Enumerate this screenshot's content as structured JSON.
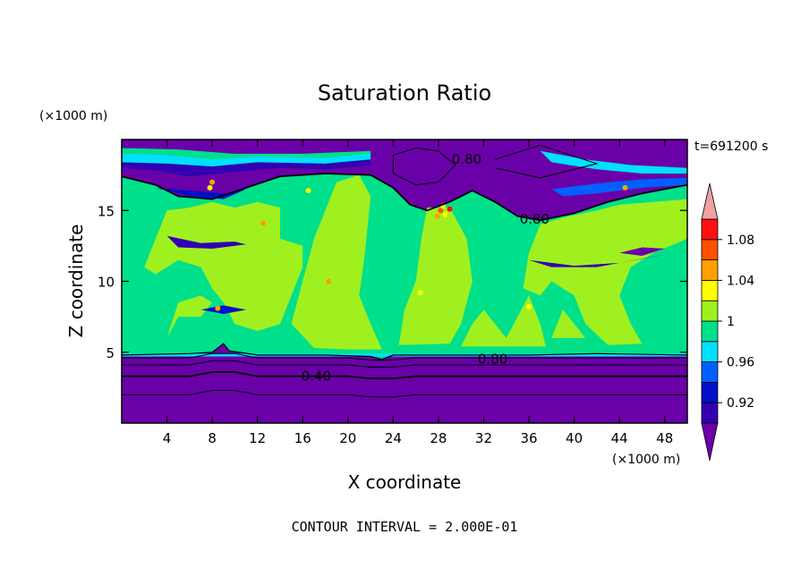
{
  "chart_data": {
    "type": "heatmap",
    "title": "Saturation Ratio",
    "xlabel": "X coordinate",
    "ylabel": "Z coordinate",
    "x_unit_label": "(×1000 m)",
    "y_unit_label": "(×1000 m)",
    "time_label": "t=691200 s",
    "footer": "CONTOUR INTERVAL = 2.000E-01",
    "xlim": [
      0,
      50
    ],
    "ylim": [
      0,
      20
    ],
    "x_ticks": [
      4,
      8,
      12,
      16,
      20,
      24,
      28,
      32,
      36,
      40,
      44,
      48
    ],
    "y_ticks": [
      5,
      10,
      15
    ],
    "colorbar": {
      "levels": [
        0.92,
        0.94,
        0.96,
        0.98,
        1,
        1.02,
        1.04,
        1.06,
        1.08,
        1.1
      ],
      "labeled_levels": [
        "0.92",
        "0.96",
        "1",
        "1.04",
        "1.08"
      ],
      "colors": [
        "#6a00a8",
        "#3200b0",
        "#0010c8",
        "#0060ff",
        "#00e0ff",
        "#00e08a",
        "#a0f020",
        "#ffff00",
        "#ffa000",
        "#ff5000",
        "#ff1010",
        "#f0a0a0"
      ]
    },
    "contour_labels": [
      {
        "text": "0.80",
        "x": 30.5,
        "y": 18.6
      },
      {
        "text": "0.80",
        "x": 36.5,
        "y": 14.4
      },
      {
        "text": "0.80",
        "x": 32.8,
        "y": 4.5
      },
      {
        "text": "0.40",
        "x": 17.2,
        "y": 3.3
      }
    ],
    "regions": {
      "background_level": 0.98,
      "lower_dry_layer_top_z": 4.8,
      "contour_levels_in_dry_layer": [
        4.6,
        4.1,
        3.3,
        2.0
      ],
      "upper_dry_zone_level": 0.9,
      "moist_cloud_level": 1.0
    }
  }
}
